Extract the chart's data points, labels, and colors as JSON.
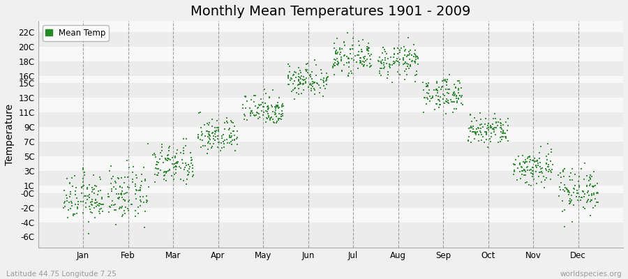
{
  "title": "Monthly Mean Temperatures 1901 - 2009",
  "ylabel": "Temperature",
  "subtitle_left": "Latitude 44.75 Longitude 7.25",
  "subtitle_right": "worldspecies.org",
  "ytick_vals": [
    -6,
    -4,
    -2,
    0,
    1,
    3,
    5,
    7,
    9,
    11,
    13,
    15,
    16,
    18,
    20,
    22
  ],
  "ytick_labels": [
    "-6C",
    "-4C",
    "-2C",
    "-0C",
    "1C",
    "3C",
    "5C",
    "7C",
    "9C",
    "11C",
    "13C",
    "15C",
    "16C",
    "18C",
    "20C",
    "22C"
  ],
  "ylim": [
    -7.5,
    23.5
  ],
  "months": [
    "Jan",
    "Feb",
    "Mar",
    "Apr",
    "May",
    "Jun",
    "Jul",
    "Aug",
    "Sep",
    "Oct",
    "Nov",
    "Dec"
  ],
  "mean_temps": [
    -0.8,
    -0.3,
    3.8,
    7.8,
    11.5,
    15.5,
    18.5,
    18.0,
    13.5,
    8.5,
    3.5,
    0.5
  ],
  "std_devs": [
    1.6,
    1.8,
    1.4,
    1.2,
    1.1,
    1.1,
    1.0,
    1.1,
    1.1,
    1.1,
    1.3,
    1.6
  ],
  "dot_color": "#228B22",
  "dot_size": 4,
  "n_years": 109,
  "band_colors": [
    "#ececec",
    "#f8f8f8"
  ],
  "vline_color": "#888888",
  "legend_label": "Mean Temp",
  "title_fontsize": 14,
  "label_fontsize": 10,
  "tick_fontsize": 8.5,
  "fig_bg": "#f0f0f0"
}
